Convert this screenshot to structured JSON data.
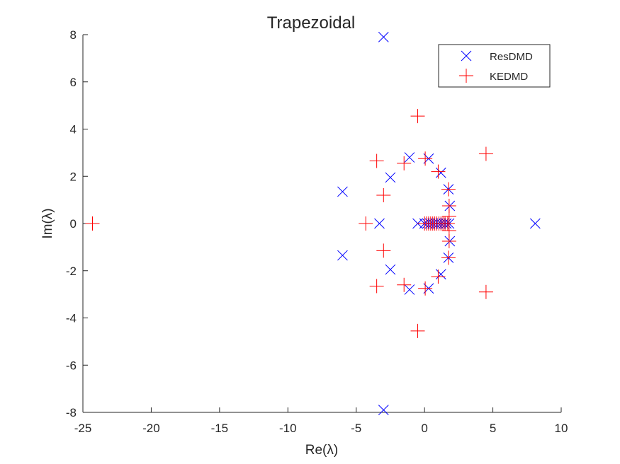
{
  "chart_data": {
    "type": "scatter",
    "title": "Trapezoidal",
    "xlabel": "Re(λ)",
    "ylabel": "Im(λ)",
    "xlim": [
      -25,
      10
    ],
    "ylim": [
      -8,
      8
    ],
    "xticks": [
      -25,
      -20,
      -15,
      -10,
      -5,
      0,
      5,
      10
    ],
    "yticks": [
      -8,
      -6,
      -4,
      -2,
      0,
      2,
      4,
      6,
      8
    ],
    "xtick_labels": [
      "-25",
      "-20",
      "-15",
      "-10",
      "-5",
      "0",
      "5",
      "10"
    ],
    "ytick_labels": [
      "-8",
      "-6",
      "-4",
      "-2",
      "0",
      "2",
      "4",
      "6",
      "8"
    ],
    "grid": false,
    "legend_position": "top-right",
    "series": [
      {
        "name": "ResDMD",
        "marker": "x",
        "color": "#0000ff",
        "points": [
          [
            -3,
            7.9
          ],
          [
            -3,
            -7.9
          ],
          [
            8.1,
            0
          ],
          [
            -6.0,
            1.35
          ],
          [
            -6.0,
            -1.35
          ],
          [
            -3.3,
            0
          ],
          [
            -2.5,
            1.95
          ],
          [
            -2.5,
            -1.95
          ],
          [
            -1.1,
            2.8
          ],
          [
            -1.1,
            -2.8
          ],
          [
            0.3,
            2.75
          ],
          [
            0.3,
            -2.75
          ],
          [
            1.2,
            2.15
          ],
          [
            1.2,
            -2.15
          ],
          [
            1.75,
            1.45
          ],
          [
            1.75,
            -1.45
          ],
          [
            1.85,
            0.75
          ],
          [
            1.85,
            -0.75
          ],
          [
            -0.5,
            0
          ],
          [
            0,
            0
          ],
          [
            0.2,
            0
          ],
          [
            0.4,
            0
          ],
          [
            0.6,
            0
          ],
          [
            0.8,
            0
          ],
          [
            1.0,
            0
          ],
          [
            1.2,
            0
          ],
          [
            1.4,
            0
          ],
          [
            1.6,
            0
          ],
          [
            1.8,
            0
          ]
        ]
      },
      {
        "name": "KEDMD",
        "marker": "+",
        "color": "#ff0000",
        "points": [
          [
            -24.3,
            0
          ],
          [
            -4.3,
            0
          ],
          [
            -0.5,
            4.55
          ],
          [
            -0.5,
            -4.55
          ],
          [
            4.5,
            2.95
          ],
          [
            4.5,
            -2.9
          ],
          [
            -3.5,
            2.65
          ],
          [
            -3.5,
            -2.65
          ],
          [
            -3.0,
            1.2
          ],
          [
            -3.0,
            -1.15
          ],
          [
            -1.5,
            2.55
          ],
          [
            -1.5,
            -2.6
          ],
          [
            0.05,
            2.75
          ],
          [
            0.05,
            -2.75
          ],
          [
            1.0,
            2.2
          ],
          [
            1.0,
            -2.25
          ],
          [
            1.75,
            1.45
          ],
          [
            1.75,
            -1.45
          ],
          [
            1.8,
            0.75
          ],
          [
            1.8,
            -0.75
          ],
          [
            0,
            0
          ],
          [
            0.15,
            0
          ],
          [
            0.3,
            0
          ],
          [
            0.45,
            0
          ],
          [
            0.6,
            0
          ],
          [
            0.75,
            0
          ],
          [
            0.9,
            0
          ],
          [
            1.05,
            0
          ],
          [
            1.2,
            0
          ],
          [
            1.35,
            0
          ],
          [
            1.5,
            0
          ],
          [
            1.7,
            0
          ],
          [
            1.8,
            0.3
          ],
          [
            1.8,
            -0.3
          ]
        ]
      }
    ]
  }
}
